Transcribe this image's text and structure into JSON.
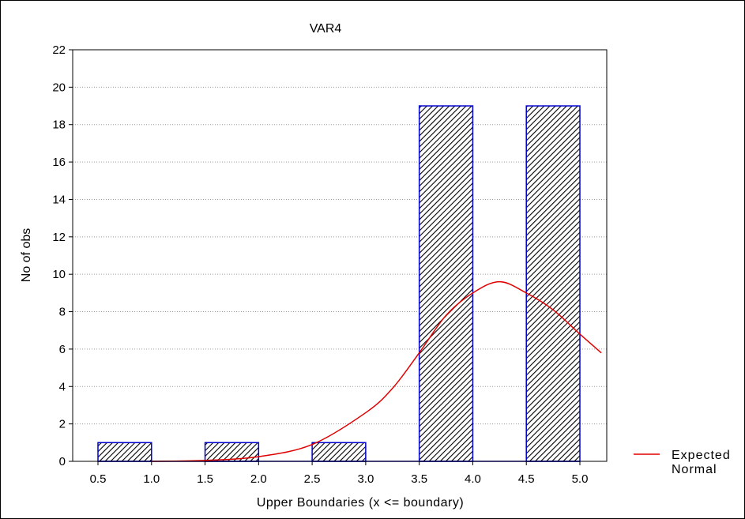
{
  "chart_data": {
    "type": "bar",
    "title": "VAR4",
    "xlabel": "Upper Boundaries (x <= boundary)",
    "ylabel": "No of obs",
    "ylim": [
      0,
      22
    ],
    "yticks": [
      0,
      2,
      4,
      6,
      8,
      10,
      12,
      14,
      16,
      18,
      20,
      22
    ],
    "xlim": [
      0.5,
      5.0
    ],
    "categories": [
      "1.0",
      "2.0",
      "3.0",
      "4.0",
      "5.0"
    ],
    "xtick_labels": [
      "0.5",
      "1.0",
      "1.5",
      "2.0",
      "2.5",
      "3.0",
      "3.5",
      "4.0",
      "4.5",
      "5.0"
    ],
    "values": [
      1,
      1,
      1,
      19,
      19
    ],
    "grid": "horizontal dotted",
    "bar_fill": "diagonal hatch",
    "bar_color": "#0000cc",
    "curve_color": "#e00000",
    "legend": {
      "position": "bottom-right",
      "label_line1": "Expected",
      "label_line2": "Normal"
    },
    "expected_normal": {
      "x": [
        1.0,
        1.5,
        2.0,
        2.5,
        3.0,
        3.25,
        3.5,
        3.75,
        4.0,
        4.25,
        4.5,
        4.75,
        5.0,
        5.2
      ],
      "y": [
        0.0,
        0.05,
        0.25,
        0.9,
        2.6,
        3.9,
        5.8,
        7.8,
        9.0,
        9.6,
        9.0,
        8.1,
        6.8,
        5.8
      ]
    }
  }
}
